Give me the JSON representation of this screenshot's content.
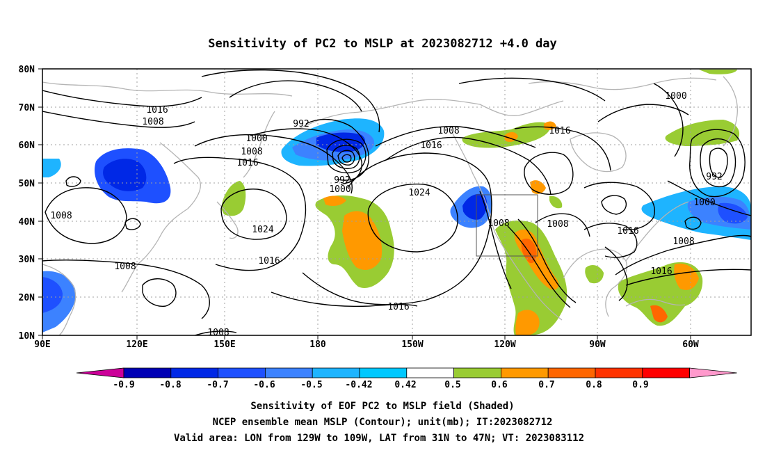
{
  "title": "Sensitivity of PC2 to MSLP at 2023082712 +4.0 day",
  "map": {
    "lat_labels": [
      "80N",
      "70N",
      "60N",
      "50N",
      "40N",
      "30N",
      "20N",
      "10N"
    ],
    "lon_labels": [
      "90E",
      "120E",
      "150E",
      "180",
      "150W",
      "120W",
      "90W",
      "60W"
    ],
    "contour_labels": [
      "1016",
      "1008",
      "992",
      "1000",
      "1008",
      "1016",
      "992",
      "1000",
      "1008",
      "1016",
      "1024",
      "1024",
      "1008",
      "1008",
      "1016",
      "1008",
      "1008",
      "1016",
      "1016",
      "1000",
      "992",
      "1000",
      "1016",
      "1008",
      "1016",
      "1008",
      "1008"
    ],
    "colors": {
      "contour": "#000000",
      "coast": "#b4b4b4",
      "grid": "#a0a0a0"
    }
  },
  "colorbar": {
    "levels": [
      "-0.9",
      "-0.8",
      "-0.7",
      "-0.6",
      "-0.5",
      "-0.42",
      "0.42",
      "0.5",
      "0.6",
      "0.7",
      "0.8",
      "0.9"
    ],
    "colors": [
      "#cc0099",
      "#0000b4",
      "#0028e6",
      "#1e50ff",
      "#3c82ff",
      "#1eb4ff",
      "#00c8ff",
      "#ffffff",
      "#99cc33",
      "#ff9900",
      "#ff6600",
      "#ff3300",
      "#ff0000",
      "#ff99cc"
    ]
  },
  "footer": {
    "line1": "Sensitivity of EOF PC2 to MSLP field (Shaded)",
    "line2": "NCEP ensemble mean MSLP (Contour); unit(mb); IT:2023082712",
    "line3": "Valid area: LON from 129W to 109W, LAT from 31N to 47N; VT: 2023083112"
  }
}
